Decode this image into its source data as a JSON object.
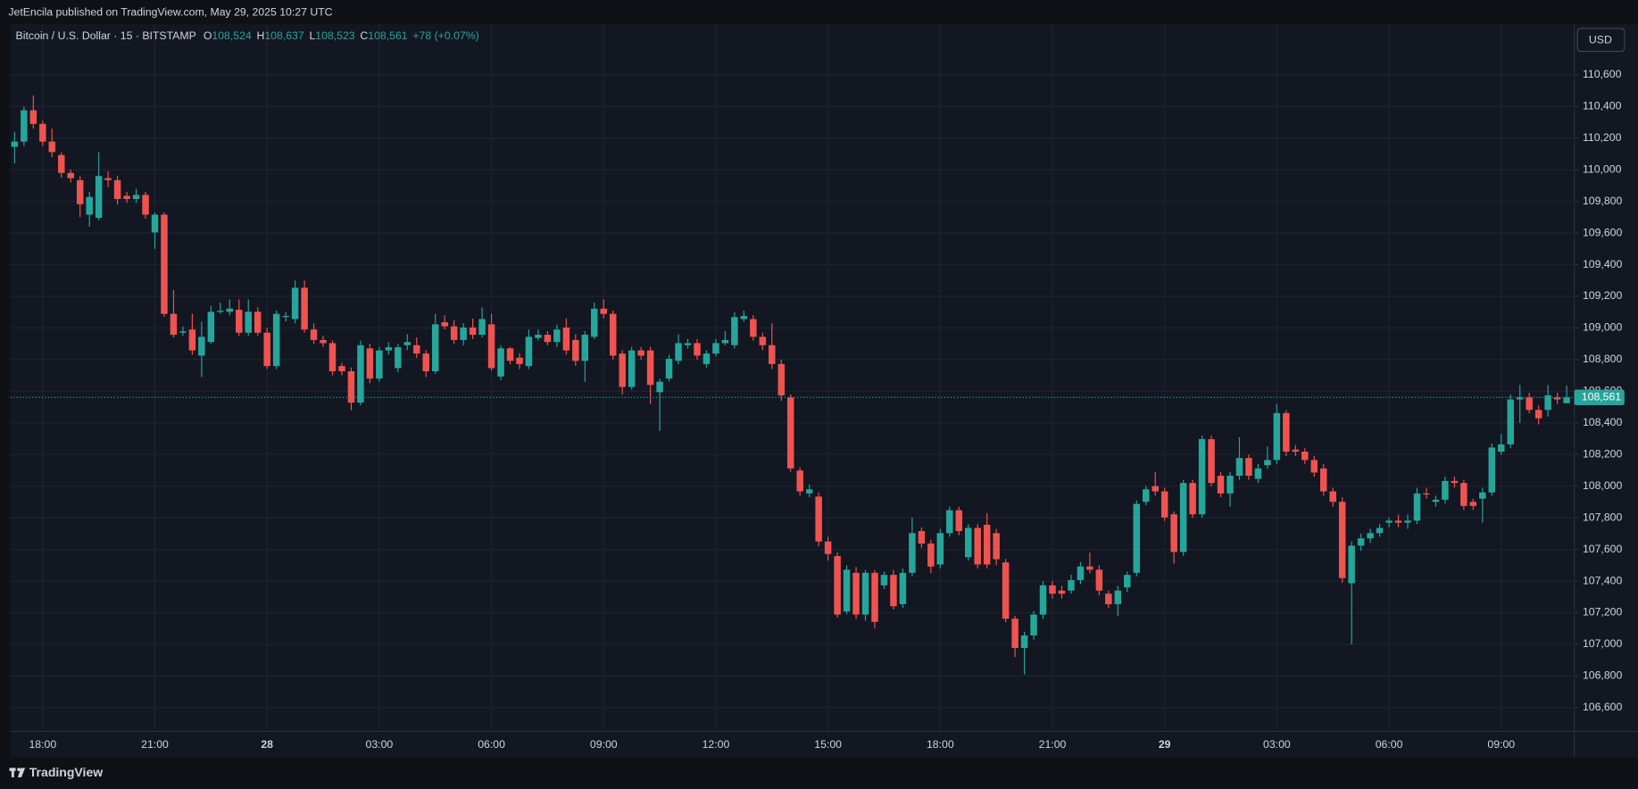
{
  "header": "JetEncila published on TradingView.com, May 29, 2025 10:27 UTC",
  "footer": "TradingView",
  "currency_button": "USD",
  "chart_data": {
    "type": "candlestick",
    "legend": {
      "symbol": "Bitcoin / U.S. Dollar · 15 · BITSTAMP",
      "fields": [
        {
          "key": "O",
          "value": "108,524"
        },
        {
          "key": "H",
          "value": "108,637"
        },
        {
          "key": "L",
          "value": "108,523"
        },
        {
          "key": "C",
          "value": "108,561"
        }
      ],
      "change": "+78 (+0.07%)"
    },
    "up_color": "#26a69a",
    "down_color": "#ef5350",
    "grid": true,
    "xticks": [
      "18:00",
      "21:00",
      "28",
      "03:00",
      "06:00",
      "09:00",
      "12:00",
      "15:00",
      "18:00",
      "21:00",
      "29",
      "03:00",
      "06:00",
      "09:00"
    ],
    "ylim": [
      106450,
      110920
    ],
    "yticks": [
      {
        "value": 106600,
        "label": "106,600"
      },
      {
        "value": 106800,
        "label": "106,800"
      },
      {
        "value": 107000,
        "label": "107,000"
      },
      {
        "value": 107200,
        "label": "107,200"
      },
      {
        "value": 107400,
        "label": "107,400"
      },
      {
        "value": 107600,
        "label": "107,600"
      },
      {
        "value": 107800,
        "label": "107,800"
      },
      {
        "value": 108000,
        "label": "108,000"
      },
      {
        "value": 108200,
        "label": "108,200"
      },
      {
        "value": 108400,
        "label": "108,400"
      },
      {
        "value": 108600,
        "label": "108,600"
      },
      {
        "value": 108800,
        "label": "108,800"
      },
      {
        "value": 109000,
        "label": "109,000"
      },
      {
        "value": 109200,
        "label": "109,200"
      },
      {
        "value": 109400,
        "label": "109,400"
      },
      {
        "value": 109600,
        "label": "109,600"
      },
      {
        "value": 109800,
        "label": "109,800"
      },
      {
        "value": 110000,
        "label": "110,000"
      },
      {
        "value": 110200,
        "label": "110,200"
      },
      {
        "value": 110400,
        "label": "110,400"
      },
      {
        "value": 110600,
        "label": "110,600"
      }
    ],
    "last_price": {
      "value": 108561,
      "label": "108,561"
    },
    "open": [
      110145,
      110178,
      110376,
      110290,
      110178,
      110093,
      109980,
      109934,
      109716,
      109696,
      109947,
      109934,
      109835,
      109815,
      109841,
      109604,
      109716,
      109089,
      108970,
      108990,
      108825,
      108911,
      109102,
      109102,
      109115,
      108970,
      109102,
      108970,
      108759,
      109069,
      109056,
      109254,
      108990,
      108924,
      108904,
      108759,
      108726,
      108528,
      108871,
      108680,
      108858,
      108746,
      108891,
      108891,
      108838,
      108726,
      109036,
      109010,
      108924,
      109003,
      108957,
      109023,
      108693,
      108871,
      108812,
      108759,
      108937,
      108957,
      108911,
      109003,
      108924,
      108792,
      108944,
      109122,
      109089,
      108838,
      108627,
      108858,
      108858,
      108594,
      108680,
      108792,
      108891,
      108904,
      108772,
      108838,
      108904,
      108891,
      109056,
      109056,
      108944,
      108891,
      108772,
      108561,
      108099,
      107954,
      107934,
      107650,
      107558,
      107208,
      107452,
      107188,
      107452,
      107373,
      107439,
      107254,
      107452,
      107716,
      107637,
      107505,
      107703,
      107848,
      107551,
      107736,
      107756,
      107703,
      107518,
      107162,
      106977,
      107056,
      107188,
      107373,
      107340,
      107340,
      107406,
      107492,
      107472,
      107320,
      107254,
      107360,
      107452,
      107901,
      108000,
      107967,
      107822,
      107584,
      108020,
      107822,
      108297,
      108066,
      107954,
      108066,
      108178,
      108046,
      108132,
      108165,
      108462,
      108231,
      108218,
      108165,
      108112,
      107967,
      107901,
      107386,
      107624,
      107670,
      107703,
      107769,
      107782,
      107769,
      107782,
      107954,
      107901,
      107914,
      108033,
      108020,
      107901,
      107921,
      107960,
      108218,
      108264,
      108548,
      108561,
      108482,
      108482,
      108561,
      108524
    ],
    "high": [
      110240,
      110400,
      110470,
      110310,
      110260,
      110110,
      110000,
      109960,
      109860,
      110110,
      109990,
      109960,
      109860,
      109880,
      109860,
      109730,
      109730,
      109240,
      109010,
      109090,
      109040,
      109140,
      109160,
      109180,
      109180,
      109180,
      109130,
      109000,
      109110,
      109100,
      109300,
      109300,
      109030,
      108950,
      108920,
      108780,
      108750,
      108920,
      108900,
      108880,
      108910,
      108900,
      108960,
      108940,
      108860,
      109090,
      109080,
      109050,
      109030,
      109060,
      109130,
      109090,
      108890,
      108880,
      108840,
      108990,
      108990,
      108980,
      109020,
      109060,
      108960,
      108980,
      109160,
      109180,
      109110,
      108860,
      108880,
      108880,
      108880,
      108680,
      108830,
      108960,
      108930,
      108930,
      108860,
      108930,
      108980,
      109100,
      109110,
      109080,
      108970,
      109030,
      108800,
      108580,
      108120,
      108010,
      107960,
      107680,
      107580,
      107500,
      107490,
      107470,
      107470,
      107460,
      107470,
      107480,
      107800,
      107740,
      107660,
      107730,
      107870,
      107870,
      107760,
      107760,
      107830,
      107730,
      107540,
      107180,
      107080,
      107210,
      107400,
      107400,
      107370,
      107440,
      107520,
      107580,
      107500,
      107340,
      107370,
      107460,
      107910,
      108000,
      108090,
      107990,
      107840,
      108040,
      108040,
      108320,
      108320,
      108090,
      108090,
      108310,
      108200,
      108140,
      108250,
      108520,
      108480,
      108260,
      108240,
      108190,
      108140,
      107990,
      107930,
      107650,
      107700,
      107730,
      107760,
      107800,
      107820,
      107820,
      107990,
      107990,
      107940,
      108060,
      108060,
      108040,
      107920,
      107990,
      108270,
      108330,
      108580,
      108640,
      108590,
      108510,
      108640,
      108590,
      108637
    ],
    "low": [
      110040,
      110150,
      110260,
      110150,
      110080,
      109950,
      109920,
      109700,
      109640,
      109680,
      109890,
      109780,
      109790,
      109790,
      109690,
      109500,
      109070,
      108940,
      108950,
      108830,
      108690,
      108900,
      109090,
      109080,
      108950,
      108950,
      108950,
      108740,
      108740,
      109040,
      109030,
      108970,
      108900,
      108880,
      108700,
      108700,
      108480,
      108510,
      108650,
      108660,
      108830,
      108720,
      108860,
      108810,
      108690,
      108710,
      108990,
      108900,
      108890,
      108930,
      108940,
      108730,
      108670,
      108770,
      108740,
      108740,
      108920,
      108890,
      108880,
      108830,
      108760,
      108660,
      108930,
      109060,
      108800,
      108580,
      108610,
      108800,
      108520,
      108350,
      108660,
      108770,
      108870,
      108800,
      108750,
      108820,
      108890,
      108870,
      109040,
      108920,
      108860,
      108740,
      108540,
      108090,
      107940,
      107930,
      107620,
      107530,
      107170,
      107190,
      107160,
      107150,
      107100,
      107350,
      107220,
      107230,
      107430,
      107610,
      107450,
      107480,
      107680,
      107690,
      107530,
      107480,
      107480,
      107500,
      107140,
      106920,
      106810,
      107030,
      107160,
      107290,
      107290,
      107320,
      107380,
      107450,
      107310,
      107230,
      107180,
      107330,
      107430,
      107880,
      107940,
      107780,
      107510,
      107560,
      107800,
      107800,
      108000,
      107930,
      107870,
      108040,
      108040,
      108020,
      108110,
      108140,
      108190,
      108190,
      108140,
      108060,
      107940,
      107870,
      107390,
      107000,
      107590,
      107640,
      107680,
      107740,
      107740,
      107730,
      107760,
      107920,
      107870,
      107890,
      107990,
      107850,
      107850,
      107769,
      107940,
      108200,
      108240,
      108400,
      108460,
      108390,
      108440,
      108520,
      108523
    ],
    "close": [
      110178,
      110376,
      110290,
      110178,
      110112,
      109980,
      109947,
      109782,
      109828,
      109960,
      109934,
      109815,
      109815,
      109841,
      109716,
      109716,
      109089,
      108957,
      108978,
      108858,
      108944,
      109102,
      109109,
      109122,
      108970,
      109102,
      108970,
      108759,
      109089,
      109076,
      109254,
      108990,
      108924,
      108904,
      108726,
      108726,
      108528,
      108891,
      108680,
      108858,
      108878,
      108878,
      108911,
      108838,
      108726,
      109023,
      109010,
      108924,
      109003,
      108957,
      109056,
      108746,
      108871,
      108792,
      108772,
      108944,
      108957,
      108911,
      108990,
      108858,
      108792,
      108957,
      109122,
      109089,
      108825,
      108627,
      108858,
      108825,
      108640,
      108660,
      108805,
      108904,
      108904,
      108825,
      108838,
      108904,
      108924,
      109069,
      109076,
      108944,
      108891,
      108772,
      108574,
      108112,
      107967,
      107980,
      107650,
      107571,
      107188,
      107472,
      107188,
      107452,
      107142,
      107439,
      107241,
      107452,
      107703,
      107637,
      107492,
      107703,
      107848,
      107716,
      107736,
      107505,
      107505,
      107538,
      107162,
      106977,
      107056,
      107188,
      107373,
      107320,
      107320,
      107406,
      107492,
      107472,
      107340,
      107254,
      107340,
      107439,
      107888,
      107980,
      107967,
      107802,
      107584,
      108020,
      107822,
      108297,
      108020,
      107954,
      108066,
      108178,
      108066,
      108112,
      108165,
      108462,
      108218,
      108218,
      108165,
      108086,
      107967,
      107901,
      107419,
      107624,
      107670,
      107703,
      107736,
      107782,
      107769,
      107782,
      107954,
      107948,
      107914,
      108033,
      108020,
      107875,
      107875,
      107960,
      108244,
      108264,
      108548,
      108561,
      108482,
      108429,
      108574,
      108548,
      108561
    ]
  }
}
